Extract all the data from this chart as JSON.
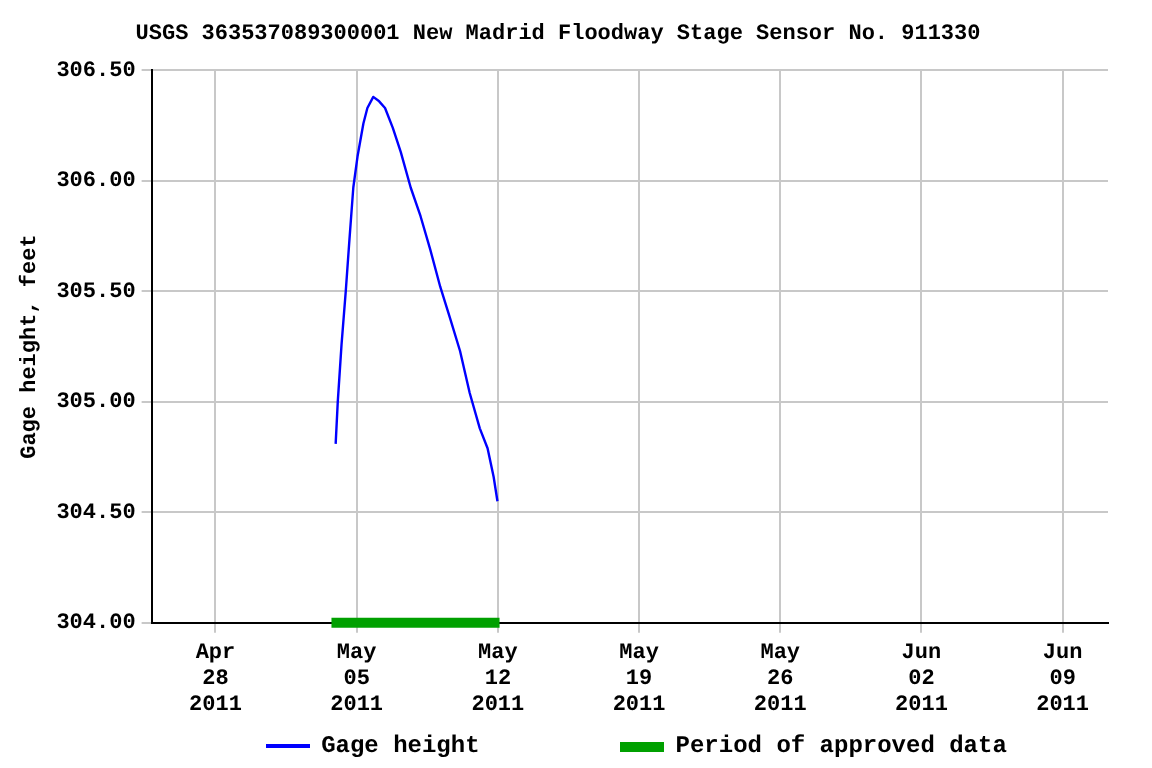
{
  "chart_data": {
    "type": "line",
    "title": "USGS 363537089300001 New Madrid Floodway Stage Sensor No. 911330",
    "ylabel": "Gage height, feet",
    "x": [
      "2011-05-03T23:00",
      "2011-05-04T01:30",
      "2011-05-04T06:00",
      "2011-05-04T11:00",
      "2011-05-04T15:30",
      "2011-05-04T20:00",
      "2011-05-05T01:00",
      "2011-05-05T08:00",
      "2011-05-05T12:45",
      "2011-05-05T19:45",
      "2011-05-06T02:45",
      "2011-05-06T09:45",
      "2011-05-06T19:00",
      "2011-05-07T04:30",
      "2011-05-07T16:15",
      "2011-05-08T04:00",
      "2011-05-08T15:30",
      "2011-05-09T03:30",
      "2011-05-09T15:00",
      "2011-05-10T03:00",
      "2011-05-10T14:30",
      "2011-05-11T02:30",
      "2011-05-11T11:45",
      "2011-05-11T19:00",
      "2011-05-11T23:30"
    ],
    "series": [
      {
        "name": "Gage height",
        "color": "#0000ff",
        "values": [
          304.81,
          305.0,
          305.26,
          305.5,
          305.74,
          305.97,
          306.11,
          306.26,
          306.33,
          306.38,
          306.36,
          306.33,
          306.24,
          306.13,
          305.97,
          305.84,
          305.69,
          305.52,
          305.38,
          305.23,
          305.04,
          304.88,
          304.79,
          304.66,
          304.55
        ]
      },
      {
        "name": "Period of approved data",
        "color": "#00a000",
        "x": [
          "2011-05-03T18:00",
          "2011-05-12T02:00"
        ],
        "values": [
          304.0,
          304.0
        ]
      }
    ],
    "xlim": [
      "2011-04-24T20:00",
      "2011-06-11T06:00"
    ],
    "xticks": [
      {
        "value": "2011-04-28",
        "label": "Apr 28 2011"
      },
      {
        "value": "2011-05-05",
        "label": "May 05 2011"
      },
      {
        "value": "2011-05-12",
        "label": "May 12 2011"
      },
      {
        "value": "2011-05-19",
        "label": "May 19 2011"
      },
      {
        "value": "2011-05-26",
        "label": "May 26 2011"
      },
      {
        "value": "2011-06-02",
        "label": "Jun 02 2011"
      },
      {
        "value": "2011-06-09",
        "label": "Jun 09 2011"
      }
    ],
    "ylim": [
      304,
      306.5
    ],
    "yticks": [
      {
        "value": 304,
        "label": "304.00"
      },
      {
        "value": 304.5,
        "label": "304.50"
      },
      {
        "value": 305,
        "label": "305.00"
      },
      {
        "value": 305.5,
        "label": "305.50"
      },
      {
        "value": 306,
        "label": "306.00"
      },
      {
        "value": 306.5,
        "label": "306.50"
      }
    ],
    "grid": true,
    "legend": "bottom",
    "marker": "none",
    "line_style": "solid"
  }
}
